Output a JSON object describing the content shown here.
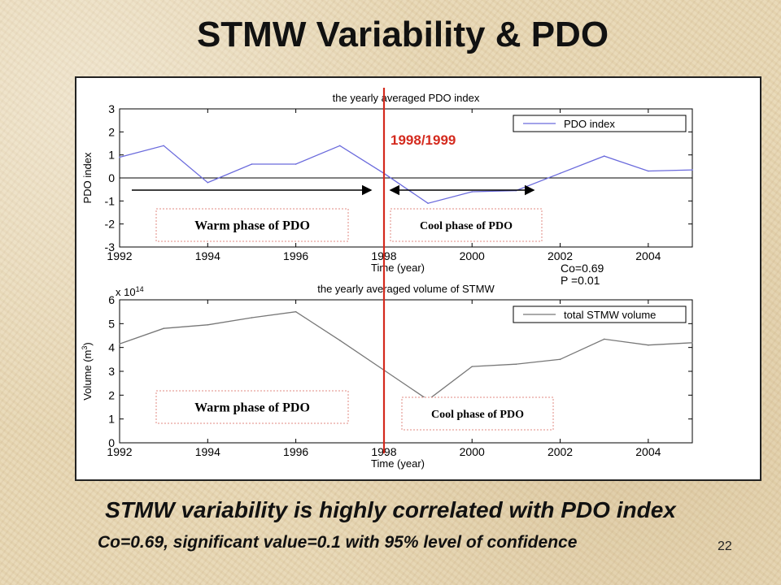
{
  "slide": {
    "title": "STMW Variability & PDO",
    "caption_main": "STMW variability is highly correlated with PDO index",
    "caption_sub": "Co=0.69, significant value=0.1 with 95% level of confidence",
    "slide_number": "22"
  },
  "annotations": {
    "divider_label": "1998/1999",
    "warm_phase": "Warm phase of PDO",
    "cool_phase": "Cool phase of PDO",
    "correlation": "Co=0.69",
    "p_value": "P =0.01",
    "divider_color": "#d42a1e"
  },
  "chart_data": [
    {
      "type": "line",
      "title": "the yearly averaged PDO index",
      "xlabel": "Time (year)",
      "ylabel": "PDO index",
      "xlim": [
        1992,
        2005
      ],
      "ylim": [
        -3,
        3
      ],
      "xticks": [
        1992,
        1994,
        1996,
        1998,
        2000,
        2002,
        2004
      ],
      "yticks": [
        -3,
        -2,
        -1,
        0,
        1,
        2,
        3
      ],
      "y_multiplier": "",
      "series": [
        {
          "name": "PDO index",
          "color": "#6a6adc",
          "x": [
            1992,
            1993,
            1994,
            1995,
            1996,
            1997,
            1998,
            1999,
            2000,
            2001,
            2002,
            2003,
            2004,
            2005
          ],
          "y": [
            0.9,
            1.4,
            -0.2,
            0.6,
            0.6,
            1.4,
            0.2,
            -1.1,
            -0.6,
            -0.55,
            0.2,
            0.95,
            0.3,
            0.35
          ]
        }
      ],
      "zero_line": true,
      "legend": "top-right"
    },
    {
      "type": "line",
      "title": "the yearly averaged volume of STMW",
      "xlabel": "Time (year)",
      "ylabel": "Volume (m",
      "ylabel_sup": "3",
      "ylabel_end": ")",
      "xlim": [
        1992,
        2005
      ],
      "ylim": [
        0,
        6
      ],
      "xticks": [
        1992,
        1994,
        1996,
        1998,
        2000,
        2002,
        2004
      ],
      "yticks": [
        0,
        1,
        2,
        3,
        4,
        5,
        6
      ],
      "y_multiplier": "x 10",
      "y_multiplier_exp": "14",
      "series": [
        {
          "name": "total STMW volume",
          "color": "#777777",
          "x": [
            1992,
            1993,
            1994,
            1995,
            1996,
            1997,
            1998,
            1999,
            2000,
            2001,
            2002,
            2003,
            2004,
            2005
          ],
          "y": [
            4.15,
            4.8,
            4.95,
            5.25,
            5.5,
            4.3,
            3.05,
            1.8,
            3.2,
            3.3,
            3.5,
            4.35,
            4.1,
            4.2
          ]
        }
      ],
      "zero_line": false,
      "legend": "top-right"
    }
  ]
}
